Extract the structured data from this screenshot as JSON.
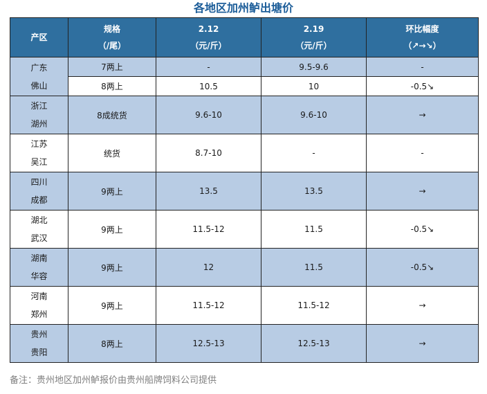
{
  "title": "各地区加州鲈出塘价",
  "headers": {
    "region": "产区",
    "spec_line1": "规格",
    "spec_line2": "（/尾）",
    "date1_line1": "2.12",
    "date1_line2": "（元/斤）",
    "date2_line1": "2.19",
    "date2_line2": "（元/斤）",
    "change_line1": "环比幅度",
    "change_line2": "（↗→↘）"
  },
  "rows": [
    {
      "region_line1": "广东",
      "region_line2": "佛山",
      "sub": [
        {
          "spec": "7两上",
          "p1": "-",
          "p2": "9.5-9.6",
          "change": "-",
          "trend": "flat"
        },
        {
          "spec": "8两上",
          "p1": "10.5",
          "p2": "10",
          "change": "-0.5↘",
          "trend": "down"
        }
      ]
    },
    {
      "region_line1": "浙江",
      "region_line2": "湖州",
      "spec": "8成统货",
      "p1": "9.6-10",
      "p2": "9.6-10",
      "change": "→",
      "trend": "flat"
    },
    {
      "region_line1": "江苏",
      "region_line2": "吴江",
      "spec": "统货",
      "p1": "8.7-10",
      "p2": "-",
      "change": "-",
      "trend": "flat"
    },
    {
      "region_line1": "四川",
      "region_line2": "成都",
      "spec": "9两上",
      "p1": "13.5",
      "p2": "13.5",
      "change": "→",
      "trend": "flat"
    },
    {
      "region_line1": "湖北",
      "region_line2": "武汉",
      "spec": "9两上",
      "p1": "11.5-12",
      "p2": "11.5",
      "change": "-0.5↘",
      "trend": "down"
    },
    {
      "region_line1": "湖南",
      "region_line2": "华容",
      "spec": "9两上",
      "p1": "12",
      "p2": "11.5",
      "change": "-0.5↘",
      "trend": "down"
    },
    {
      "region_line1": "河南",
      "region_line2": "郑州",
      "spec": "9两上",
      "p1": "11.5-12",
      "p2": "11.5-12",
      "change": "→",
      "trend": "flat"
    },
    {
      "region_line1": "贵州",
      "region_line2": "贵阳",
      "spec": "8两上",
      "p1": "12.5-13",
      "p2": "12.5-13",
      "change": "→",
      "trend": "flat"
    }
  ],
  "note": "备注：贵州地区加州鲈报价由贵州船牌饲料公司提供",
  "colors": {
    "header": "#2f6f9f",
    "stripe": "#b8cce4",
    "title": "#1c5d99",
    "down": "#1aa05c"
  }
}
